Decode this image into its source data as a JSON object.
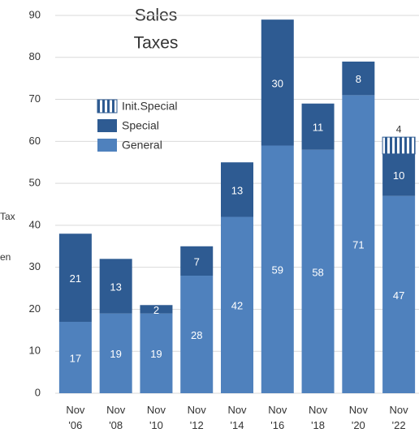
{
  "chart_data": {
    "type": "bar",
    "stacked": true,
    "title_lines": [
      "Sales",
      "Taxes"
    ],
    "axis_label_fragments": [
      "Tax",
      "en"
    ],
    "categories": [
      "Nov '06",
      "Nov '08",
      "Nov '10",
      "Nov '12",
      "Nov '14",
      "Nov '16",
      "Nov '18",
      "Nov '20",
      "Nov '22"
    ],
    "series": [
      {
        "name": "General",
        "color": "#4f81bd",
        "values": [
          17,
          19,
          19,
          28,
          42,
          59,
          58,
          71,
          47
        ]
      },
      {
        "name": "Special",
        "color": "#2e5b92",
        "values": [
          21,
          13,
          2,
          7,
          13,
          30,
          11,
          8,
          10
        ]
      },
      {
        "name": "Init.Special",
        "color": "#2e5b92",
        "pattern": "vertical-stripes",
        "values": [
          null,
          null,
          null,
          null,
          null,
          null,
          null,
          null,
          4
        ]
      }
    ],
    "ylim": [
      0,
      90
    ],
    "yticks": [
      0,
      10,
      20,
      30,
      40,
      50,
      60,
      70,
      80,
      90
    ],
    "grid": true,
    "legend": "upper left"
  }
}
